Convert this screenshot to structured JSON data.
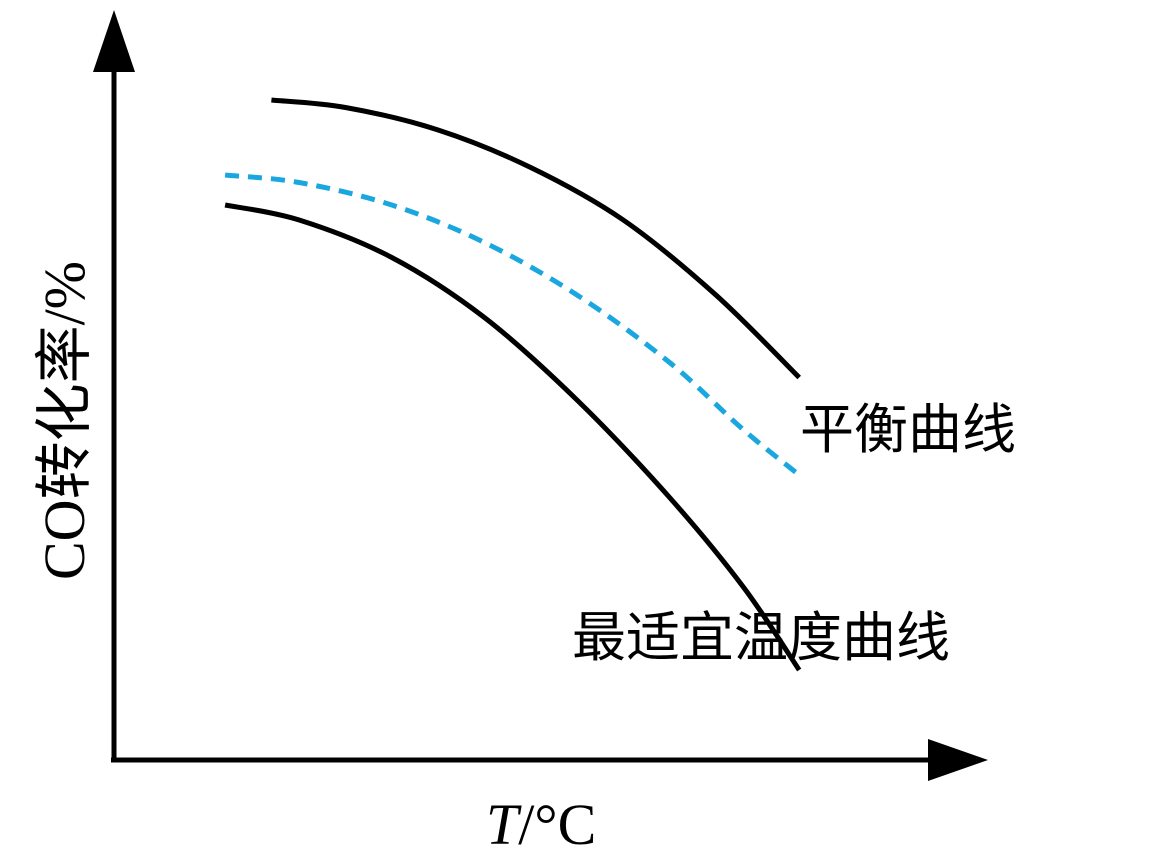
{
  "chart_data": {
    "type": "line",
    "title": "",
    "xlabel_var": "T",
    "xlabel_unit": "/°C",
    "ylabel": "CO转化率/%",
    "grid": false,
    "legend": "inline labels",
    "series": [
      {
        "name": "平衡曲线",
        "color": "#000000",
        "style": "solid",
        "x": [
          0.17,
          0.25,
          0.35,
          0.45,
          0.55,
          0.65,
          0.74
        ],
        "y": [
          0.88,
          0.87,
          0.84,
          0.79,
          0.72,
          0.62,
          0.51
        ]
      },
      {
        "name": "",
        "color": "#1aa7e0",
        "style": "dashed",
        "x": [
          0.12,
          0.2,
          0.3,
          0.4,
          0.5,
          0.6,
          0.68,
          0.74
        ],
        "y": [
          0.78,
          0.77,
          0.74,
          0.69,
          0.62,
          0.53,
          0.44,
          0.38
        ]
      },
      {
        "name": "最适宜温度曲线",
        "color": "#000000",
        "style": "solid",
        "x": [
          0.12,
          0.2,
          0.3,
          0.4,
          0.5,
          0.6,
          0.68,
          0.74
        ],
        "y": [
          0.74,
          0.72,
          0.67,
          0.59,
          0.48,
          0.35,
          0.23,
          0.12
        ]
      }
    ],
    "xlim": [
      0,
      1
    ],
    "ylim": [
      0,
      1
    ]
  }
}
